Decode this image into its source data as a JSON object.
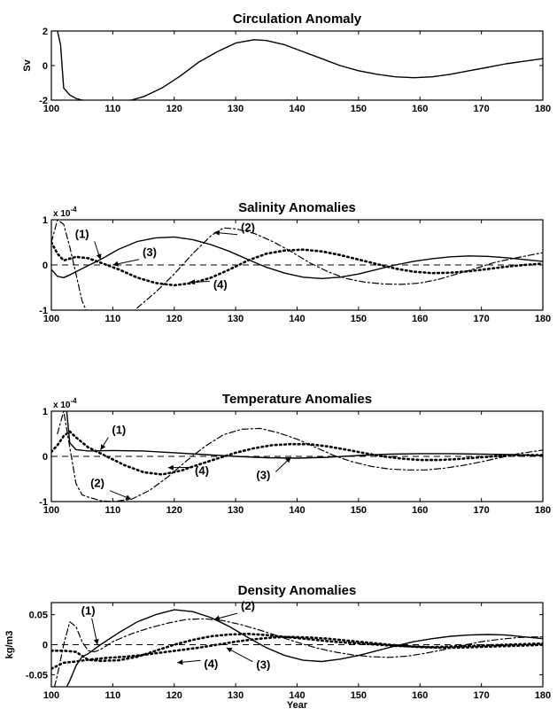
{
  "chart_data": [
    {
      "type": "line",
      "title": "Circulation Anomaly",
      "ylabel": "Sv",
      "xlabel": "",
      "multiplier": "",
      "xlim": [
        100,
        180
      ],
      "ylim": [
        -2,
        2
      ],
      "xticks": [
        100,
        110,
        120,
        130,
        140,
        150,
        160,
        170,
        180
      ],
      "yticks": [
        2,
        0,
        -2
      ],
      "ytick_labels": [
        "2",
        "0",
        "-2"
      ],
      "zero_line": false,
      "series": [
        {
          "style": "solid",
          "x": [
            101,
            101.5,
            102,
            103,
            104,
            105,
            107,
            110,
            113,
            115,
            118,
            121,
            124,
            127,
            130,
            133,
            135,
            138,
            141,
            144,
            147,
            150,
            153,
            156,
            159,
            162,
            165,
            168,
            171,
            174,
            177,
            180
          ],
          "values": [
            2,
            1.2,
            -1.3,
            -1.7,
            -1.9,
            -2.0,
            -2.1,
            -2.1,
            -2.0,
            -1.8,
            -1.3,
            -0.6,
            0.2,
            0.8,
            1.3,
            1.5,
            1.45,
            1.2,
            0.8,
            0.4,
            0.0,
            -0.3,
            -0.5,
            -0.65,
            -0.7,
            -0.65,
            -0.5,
            -0.3,
            -0.1,
            0.1,
            0.25,
            0.4
          ]
        }
      ],
      "annotations": []
    },
    {
      "type": "line",
      "title": "Salinity Anomalies",
      "ylabel": "",
      "xlabel": "",
      "multiplier": "x 10",
      "multiplier_exp": "-4",
      "xlim": [
        100,
        180
      ],
      "ylim": [
        -1,
        1
      ],
      "xticks": [
        100,
        110,
        120,
        130,
        140,
        150,
        160,
        170,
        180
      ],
      "yticks": [
        1,
        0,
        -1
      ],
      "ytick_labels": [
        "1",
        "0",
        "-1"
      ],
      "zero_line": true,
      "series": [
        {
          "style": "solid",
          "x": [
            100,
            101,
            102,
            103,
            105,
            108,
            111,
            114,
            117,
            120,
            123,
            126,
            129,
            132,
            135,
            138,
            141,
            144,
            147,
            150,
            153,
            156,
            159,
            162,
            165,
            168,
            171,
            174,
            177,
            180
          ],
          "values": [
            -0.1,
            -0.25,
            -0.28,
            -0.22,
            -0.08,
            0.12,
            0.35,
            0.52,
            0.6,
            0.62,
            0.56,
            0.45,
            0.3,
            0.12,
            -0.05,
            -0.18,
            -0.27,
            -0.3,
            -0.27,
            -0.2,
            -0.1,
            0.0,
            0.08,
            0.14,
            0.18,
            0.2,
            0.19,
            0.16,
            0.12,
            0.08
          ]
        },
        {
          "style": "dashdot",
          "x": [
            100,
            101,
            102,
            103,
            104,
            105,
            106,
            108,
            111,
            114,
            117,
            120,
            123,
            126,
            128,
            130,
            133,
            136,
            139,
            142,
            145,
            148,
            151,
            154,
            157,
            160,
            163,
            166,
            169,
            172,
            175,
            178,
            180
          ],
          "values": [
            0.5,
            1.0,
            0.9,
            0.4,
            -0.2,
            -0.8,
            -1.1,
            -1.4,
            -1.3,
            -0.95,
            -0.6,
            -0.2,
            0.25,
            0.65,
            0.82,
            0.8,
            0.7,
            0.52,
            0.3,
            0.05,
            -0.15,
            -0.3,
            -0.38,
            -0.42,
            -0.43,
            -0.4,
            -0.32,
            -0.2,
            -0.08,
            0.05,
            0.14,
            0.22,
            0.27
          ]
        },
        {
          "style": "dotted",
          "x": [
            100,
            101,
            102,
            104,
            106,
            108,
            111,
            114,
            117,
            120,
            123,
            126,
            129,
            132,
            135,
            138,
            141,
            144,
            147,
            150,
            153,
            156,
            159,
            162,
            165,
            168,
            171,
            174,
            177,
            180
          ],
          "values": [
            0.5,
            0.25,
            0.1,
            0.18,
            0.15,
            0.05,
            -0.1,
            -0.28,
            -0.4,
            -0.45,
            -0.4,
            -0.28,
            -0.1,
            0.1,
            0.25,
            0.32,
            0.34,
            0.3,
            0.22,
            0.12,
            0.02,
            -0.08,
            -0.15,
            -0.18,
            -0.17,
            -0.14,
            -0.09,
            -0.04,
            0.0,
            0.03
          ]
        }
      ],
      "annotations": [
        {
          "text": "(1)",
          "label_x": 105,
          "label_y": 0.6,
          "arrow_x": 108,
          "arrow_y": 0.12
        },
        {
          "text": "(2)",
          "label_x": 132,
          "label_y": 0.75,
          "arrow_x": 126.5,
          "arrow_y": 0.72
        },
        {
          "text": "(3)",
          "label_x": 116,
          "label_y": 0.2,
          "arrow_x": 110,
          "arrow_y": 0.0
        },
        {
          "text": "(4)",
          "label_x": 127.5,
          "label_y": -0.52,
          "arrow_x": 122.5,
          "arrow_y": -0.38
        }
      ]
    },
    {
      "type": "line",
      "title": "Temperature Anomalies",
      "ylabel": "",
      "xlabel": "",
      "multiplier": "x 10",
      "multiplier_exp": "-4",
      "xlim": [
        100,
        180
      ],
      "ylim": [
        -1,
        1
      ],
      "xticks": [
        100,
        110,
        120,
        130,
        140,
        150,
        160,
        170,
        180
      ],
      "yticks": [
        1,
        0,
        -1
      ],
      "ytick_labels": [
        "1",
        "0",
        "-1"
      ],
      "zero_line": true,
      "series": [
        {
          "style": "solid",
          "x": [
            102.5,
            103,
            104,
            106,
            110,
            115,
            120,
            125,
            130,
            135,
            140,
            145,
            150,
            155,
            160,
            165,
            170,
            175,
            180
          ],
          "values": [
            1.0,
            0.3,
            0.15,
            0.12,
            0.13,
            0.12,
            0.08,
            0.04,
            0.0,
            -0.03,
            -0.04,
            -0.02,
            0.02,
            0.05,
            0.06,
            0.06,
            0.05,
            0.04,
            0.02
          ]
        },
        {
          "style": "dashdot",
          "x": [
            101,
            102,
            103,
            104,
            105,
            106,
            108,
            110,
            113,
            116,
            119,
            122,
            125,
            128,
            131,
            134,
            137,
            140,
            143,
            146,
            149,
            152,
            155,
            158,
            161,
            164,
            167,
            170,
            173,
            176,
            179,
            180
          ],
          "values": [
            0.5,
            1.0,
            0.2,
            -0.6,
            -0.85,
            -0.9,
            -0.98,
            -1.0,
            -0.95,
            -0.75,
            -0.45,
            -0.1,
            0.22,
            0.48,
            0.6,
            0.62,
            0.52,
            0.38,
            0.2,
            0.02,
            -0.12,
            -0.22,
            -0.28,
            -0.3,
            -0.3,
            -0.26,
            -0.2,
            -0.12,
            -0.03,
            0.06,
            0.12,
            0.14
          ]
        },
        {
          "style": "dotted",
          "x": [
            100,
            101,
            102,
            103,
            104,
            106,
            109,
            112,
            115,
            118,
            121,
            124,
            127,
            130,
            133,
            136,
            139,
            142,
            145,
            148,
            151,
            154,
            157,
            160,
            163,
            166,
            169,
            172,
            175,
            178,
            180
          ],
          "values": [
            0.1,
            0.25,
            0.45,
            0.55,
            0.42,
            0.2,
            0.0,
            -0.2,
            -0.35,
            -0.4,
            -0.32,
            -0.18,
            -0.05,
            0.08,
            0.18,
            0.25,
            0.27,
            0.27,
            0.22,
            0.15,
            0.07,
            0.0,
            -0.05,
            -0.08,
            -0.08,
            -0.06,
            -0.03,
            0.0,
            0.02,
            0.03,
            0.03
          ]
        }
      ],
      "annotations": [
        {
          "text": "(1)",
          "label_x": 111,
          "label_y": 0.5,
          "arrow_x": 108,
          "arrow_y": 0.14
        },
        {
          "text": "(2)",
          "label_x": 107.5,
          "label_y": -0.68,
          "arrow_x": 113,
          "arrow_y": -0.95
        },
        {
          "text": "(3)",
          "label_x": 134.5,
          "label_y": -0.5,
          "arrow_x": 139,
          "arrow_y": -0.02
        },
        {
          "text": "(4)",
          "label_x": 124.5,
          "label_y": -0.4,
          "arrow_x": 119,
          "arrow_y": -0.25
        }
      ]
    },
    {
      "type": "line",
      "title": "Density Anomalies",
      "ylabel": "kg/m3",
      "xlabel": "Year",
      "multiplier": "",
      "xlim": [
        100,
        180
      ],
      "ylim": [
        -0.07,
        0.07
      ],
      "xticks": [
        100,
        110,
        120,
        130,
        140,
        150,
        160,
        170,
        180
      ],
      "yticks": [
        0.05,
        0,
        -0.05
      ],
      "ytick_labels": [
        "0.05",
        "0",
        "-0.05"
      ],
      "zero_line": true,
      "series": [
        {
          "style": "solid",
          "x": [
            102.5,
            103,
            104,
            105,
            106,
            108,
            111,
            114,
            117,
            120,
            123,
            126,
            129,
            132,
            135,
            138,
            141,
            144,
            147,
            150,
            153,
            156,
            159,
            162,
            165,
            168,
            171,
            174,
            177,
            180
          ],
          "values": [
            -0.07,
            -0.06,
            -0.035,
            -0.02,
            -0.015,
            0.0,
            0.02,
            0.038,
            0.05,
            0.058,
            0.055,
            0.045,
            0.03,
            0.012,
            -0.005,
            -0.018,
            -0.026,
            -0.028,
            -0.024,
            -0.018,
            -0.01,
            -0.002,
            0.005,
            0.01,
            0.014,
            0.016,
            0.017,
            0.016,
            0.013,
            0.01
          ]
        },
        {
          "style": "dashdot",
          "x": [
            100.5,
            101,
            102,
            103,
            104,
            105,
            106,
            107,
            108,
            110,
            113,
            116,
            119,
            122,
            125,
            128,
            131,
            134,
            137,
            140,
            143,
            146,
            149,
            152,
            155,
            158,
            161,
            164,
            167,
            170,
            173,
            176,
            179,
            180
          ],
          "values": [
            -0.07,
            -0.05,
            0.0,
            0.038,
            0.03,
            0.005,
            -0.01,
            -0.012,
            -0.008,
            0.005,
            0.018,
            0.028,
            0.036,
            0.042,
            0.043,
            0.04,
            0.033,
            0.024,
            0.014,
            0.004,
            -0.005,
            -0.012,
            -0.017,
            -0.02,
            -0.021,
            -0.019,
            -0.014,
            -0.008,
            -0.001,
            0.005,
            0.009,
            0.012,
            0.013,
            0.013
          ]
        },
        {
          "style": "dotted",
          "x": [
            100,
            101,
            102,
            104,
            106,
            109,
            112,
            115,
            118,
            121,
            124,
            127,
            130,
            133,
            136,
            139,
            142,
            145,
            148,
            151,
            154,
            157,
            160,
            163,
            166,
            169,
            172,
            175,
            178,
            180
          ],
          "values": [
            -0.04,
            -0.035,
            -0.03,
            -0.028,
            -0.025,
            -0.022,
            -0.02,
            -0.017,
            -0.013,
            -0.009,
            -0.005,
            0.0,
            0.005,
            0.009,
            0.012,
            0.013,
            0.012,
            0.01,
            0.007,
            0.004,
            0.001,
            -0.002,
            -0.004,
            -0.005,
            -0.005,
            -0.004,
            -0.003,
            -0.002,
            -0.001,
            0.0
          ]
        },
        {
          "style": "dotted",
          "x": [
            100,
            102,
            104,
            106,
            108,
            111,
            114,
            117,
            120,
            123,
            126,
            129,
            132,
            135,
            138,
            141,
            144,
            147,
            150,
            153,
            156,
            159,
            162,
            165,
            168,
            171,
            174,
            177,
            180
          ],
          "values": [
            -0.01,
            -0.01,
            -0.012,
            -0.025,
            -0.027,
            -0.026,
            -0.02,
            -0.01,
            0.0,
            0.008,
            0.014,
            0.017,
            0.018,
            0.016,
            0.013,
            0.01,
            0.007,
            0.004,
            0.002,
            0.0,
            -0.002,
            -0.003,
            -0.004,
            -0.003,
            -0.002,
            -0.001,
            0.0,
            0.001,
            0.002
          ]
        }
      ],
      "annotations": [
        {
          "text": "(1)",
          "label_x": 106,
          "label_y": 0.05,
          "arrow_x": 107.5,
          "arrow_y": 0.0
        },
        {
          "text": "(2)",
          "label_x": 132,
          "label_y": 0.058,
          "arrow_x": 126.5,
          "arrow_y": 0.042
        },
        {
          "text": "(3)",
          "label_x": 134.5,
          "label_y": -0.04,
          "arrow_x": 128.5,
          "arrow_y": -0.005
        },
        {
          "text": "(4)",
          "label_x": 126,
          "label_y": -0.038,
          "arrow_x": 120.5,
          "arrow_y": -0.03
        }
      ]
    }
  ]
}
